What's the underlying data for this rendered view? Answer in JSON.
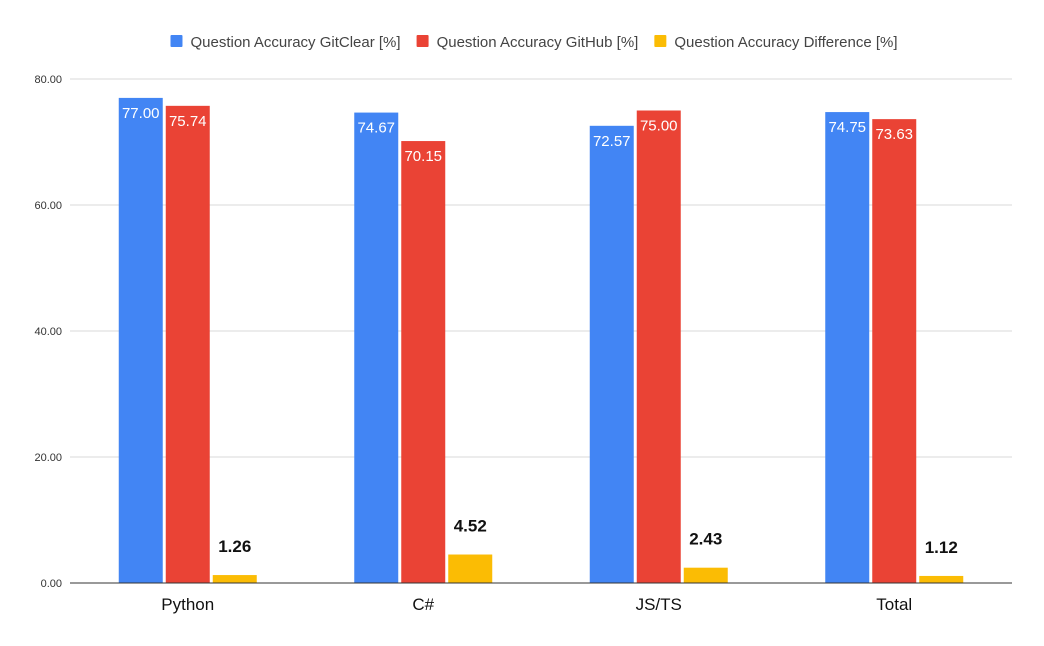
{
  "chart_data": {
    "type": "bar",
    "categories": [
      "Python",
      "C#",
      "JS/TS",
      "Total"
    ],
    "series": [
      {
        "name": "Question Accuracy GitClear [%]",
        "color": "#4285F4",
        "values": [
          77.0,
          74.67,
          72.57,
          74.75
        ],
        "value_labels": [
          "77.00",
          "74.67",
          "72.57",
          "74.75"
        ],
        "label_position": "inside"
      },
      {
        "name": "Question Accuracy GitHub [%]",
        "color": "#EA4335",
        "values": [
          75.74,
          70.15,
          75.0,
          73.63
        ],
        "value_labels": [
          "75.74",
          "70.15",
          "75.00",
          "73.63"
        ],
        "label_position": "inside"
      },
      {
        "name": "Question Accuracy Difference [%]",
        "color": "#FBBC04",
        "values": [
          1.26,
          4.52,
          2.43,
          1.12
        ],
        "value_labels": [
          "1.26",
          "4.52",
          "2.43",
          "1.12"
        ],
        "label_position": "outside"
      }
    ],
    "ylim": [
      0,
      80
    ],
    "yticks": [
      0,
      20,
      40,
      60,
      80
    ],
    "ytick_labels": [
      "0.00",
      "20.00",
      "40.00",
      "60.00",
      "80.00"
    ],
    "grid": true,
    "legend_position": "top",
    "title": "",
    "xlabel": "",
    "ylabel": ""
  }
}
